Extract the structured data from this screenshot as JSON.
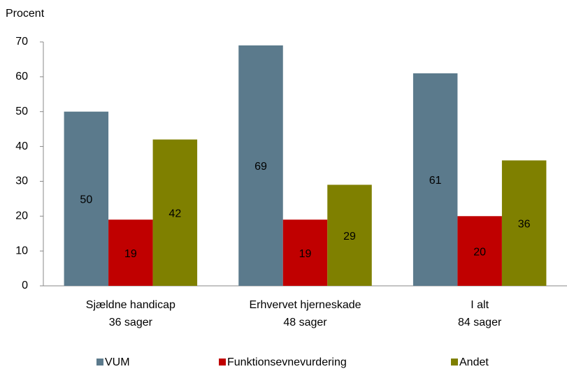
{
  "chart_data": {
    "type": "bar",
    "y_label": "Procent",
    "categories": [
      [
        "Sjældne handicap",
        "36 sager"
      ],
      [
        "Erhvervet hjerneskade",
        "48 sager"
      ],
      [
        "I alt",
        "84 sager"
      ]
    ],
    "series": [
      {
        "name": "VUM",
        "color": "#5b7a8c",
        "values": [
          50,
          69,
          61
        ]
      },
      {
        "name": "Funktionsevnevurdering",
        "color": "#c00000",
        "values": [
          19,
          19,
          20
        ]
      },
      {
        "name": "Andet",
        "color": "#7f8000",
        "values": [
          42,
          29,
          36
        ]
      }
    ],
    "ylim": [
      0,
      70
    ],
    "yticks": [
      0,
      10,
      20,
      30,
      40,
      50,
      60,
      70
    ],
    "grid": false,
    "legend": "bottom"
  }
}
